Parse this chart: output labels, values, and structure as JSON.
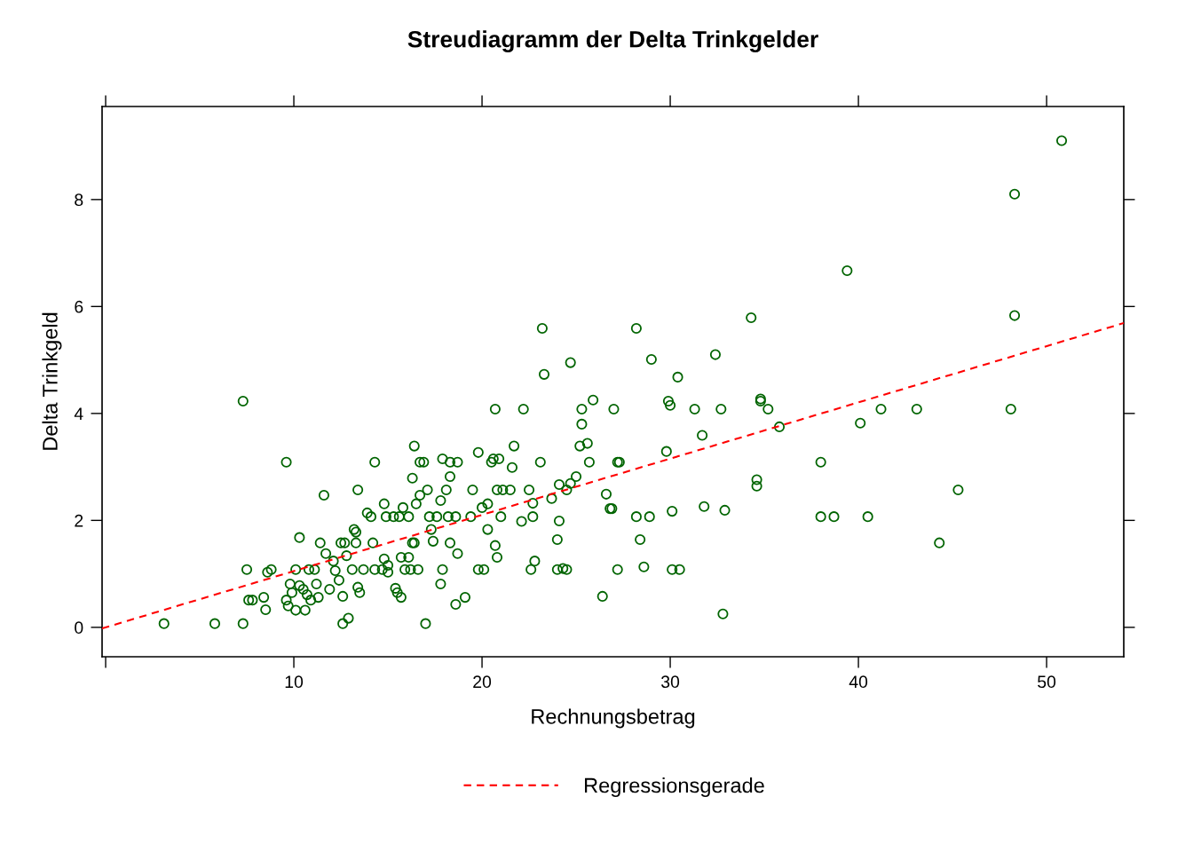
{
  "chart_data": {
    "type": "scatter",
    "title": "Streudiagramm der Delta Trinkgelder",
    "xlabel": "Rechnungsbetrag",
    "ylabel": "Delta Trinkgeld",
    "xlim": [
      -0.19,
      54.1
    ],
    "ylim": [
      -0.55,
      9.74
    ],
    "xticks": [
      {
        "value": 0,
        "label": null
      },
      10,
      20,
      30,
      40,
      50
    ],
    "yticks": [
      0,
      2,
      4,
      6,
      8
    ],
    "grid": false,
    "legend": "bottom",
    "series": [
      {
        "color": "#006400",
        "marker": "circle",
        "x": [
          3.1,
          5.8,
          7.3,
          7.3,
          7.5,
          7.6,
          7.8,
          8.4,
          8.5,
          8.6,
          8.8,
          9.6,
          9.6,
          9.7,
          9.8,
          9.9,
          10.1,
          10.1,
          10.3,
          10.3,
          10.5,
          10.6,
          10.7,
          10.8,
          10.9,
          11.1,
          11.2,
          11.3,
          11.4,
          11.6,
          11.7,
          11.9,
          12.1,
          12.2,
          12.4,
          12.5,
          12.6,
          12.6,
          12.7,
          12.8,
          12.9,
          13.1,
          13.2,
          13.3,
          13.3,
          13.4,
          13.4,
          13.5,
          13.7,
          13.9,
          14.1,
          14.2,
          14.3,
          14.3,
          14.7,
          14.8,
          14.8,
          14.9,
          15.0,
          15.0,
          15.3,
          15.4,
          15.5,
          15.6,
          15.7,
          15.7,
          15.8,
          15.9,
          16.1,
          16.1,
          16.2,
          16.3,
          16.3,
          16.4,
          16.4,
          16.5,
          16.6,
          16.7,
          16.7,
          16.9,
          17.0,
          17.1,
          17.2,
          17.3,
          17.4,
          17.6,
          17.8,
          17.9,
          17.9,
          17.8,
          18.1,
          18.2,
          18.3,
          18.3,
          18.3,
          18.6,
          18.6,
          18.7,
          18.7,
          19.1,
          19.4,
          19.5,
          19.8,
          19.8,
          20.0,
          20.1,
          20.3,
          20.3,
          20.5,
          20.6,
          20.7,
          20.7,
          20.8,
          20.8,
          20.9,
          21.0,
          21.1,
          21.5,
          21.6,
          21.7,
          22.1,
          22.2,
          22.5,
          22.6,
          22.8,
          22.7,
          22.7,
          23.1,
          23.2,
          23.3,
          23.7,
          24.0,
          24.1,
          24.1,
          24.0,
          24.3,
          24.5,
          24.5,
          24.7,
          24.7,
          25.0,
          25.2,
          25.3,
          25.3,
          25.6,
          25.7,
          25.9,
          26.4,
          26.6,
          26.8,
          26.9,
          27.0,
          27.2,
          27.2,
          27.3,
          28.2,
          28.2,
          28.4,
          28.6,
          28.9,
          29.0,
          29.8,
          29.9,
          30.0,
          30.1,
          30.1,
          30.4,
          30.5,
          31.3,
          31.7,
          31.8,
          32.4,
          32.7,
          32.8,
          32.9,
          34.3,
          34.6,
          34.6,
          34.8,
          34.8,
          35.2,
          35.8,
          38.0,
          38.0,
          38.7,
          39.4,
          40.1,
          40.5,
          41.2,
          43.1,
          44.3,
          45.3,
          48.1,
          48.3,
          48.3,
          50.8
        ],
        "values": [
          0.07,
          0.07,
          0.07,
          4.23,
          1.08,
          0.51,
          0.51,
          0.56,
          0.33,
          1.03,
          1.08,
          3.09,
          0.51,
          0.4,
          0.81,
          0.65,
          1.08,
          0.32,
          1.68,
          0.78,
          0.71,
          0.32,
          0.61,
          1.08,
          0.51,
          1.08,
          0.81,
          0.56,
          1.58,
          2.47,
          1.38,
          0.71,
          1.24,
          1.06,
          0.88,
          1.58,
          0.58,
          0.07,
          1.58,
          1.34,
          0.17,
          1.08,
          1.83,
          1.78,
          1.58,
          2.57,
          0.75,
          0.65,
          1.08,
          2.14,
          2.07,
          1.58,
          1.08,
          3.09,
          1.08,
          1.28,
          2.31,
          2.07,
          1.16,
          1.03,
          2.07,
          0.73,
          0.65,
          2.07,
          0.56,
          1.31,
          2.24,
          1.08,
          1.31,
          2.07,
          1.08,
          1.58,
          2.79,
          3.39,
          1.58,
          2.31,
          1.08,
          2.47,
          3.09,
          3.09,
          0.07,
          2.57,
          2.07,
          1.83,
          1.61,
          2.07,
          2.37,
          3.15,
          1.08,
          0.81,
          2.57,
          2.07,
          2.82,
          3.09,
          1.58,
          2.07,
          0.43,
          3.09,
          1.38,
          0.56,
          2.07,
          2.57,
          1.08,
          3.27,
          2.24,
          1.08,
          1.83,
          2.31,
          3.09,
          3.15,
          4.08,
          1.53,
          1.31,
          2.57,
          3.15,
          2.07,
          2.57,
          2.57,
          2.99,
          3.39,
          1.98,
          4.08,
          2.57,
          1.08,
          1.24,
          2.07,
          2.32,
          3.09,
          5.59,
          4.73,
          2.41,
          1.64,
          2.67,
          1.99,
          1.08,
          1.1,
          1.08,
          2.57,
          2.69,
          4.95,
          2.82,
          3.39,
          4.08,
          3.8,
          3.44,
          3.09,
          4.25,
          0.58,
          2.49,
          2.22,
          2.22,
          4.08,
          1.08,
          3.09,
          3.09,
          5.59,
          2.07,
          1.64,
          1.13,
          2.07,
          5.01,
          3.29,
          4.23,
          4.15,
          1.08,
          2.17,
          4.68,
          1.08,
          4.08,
          3.59,
          2.26,
          5.1,
          4.08,
          0.25,
          2.19,
          5.79,
          2.76,
          2.64,
          4.27,
          4.23,
          4.08,
          3.75,
          3.09,
          2.07,
          2.07,
          6.67,
          3.82,
          2.07,
          4.08,
          4.08,
          1.58,
          2.57,
          4.08,
          5.83,
          8.1,
          9.1
        ]
      },
      {
        "type": "line",
        "name": "Regressionsgerade",
        "color": "#ff0000",
        "line_style": "dashed",
        "marker": "none",
        "x": [
          -0.19,
          54.1
        ],
        "values": [
          -0.02,
          5.69
        ]
      }
    ]
  }
}
